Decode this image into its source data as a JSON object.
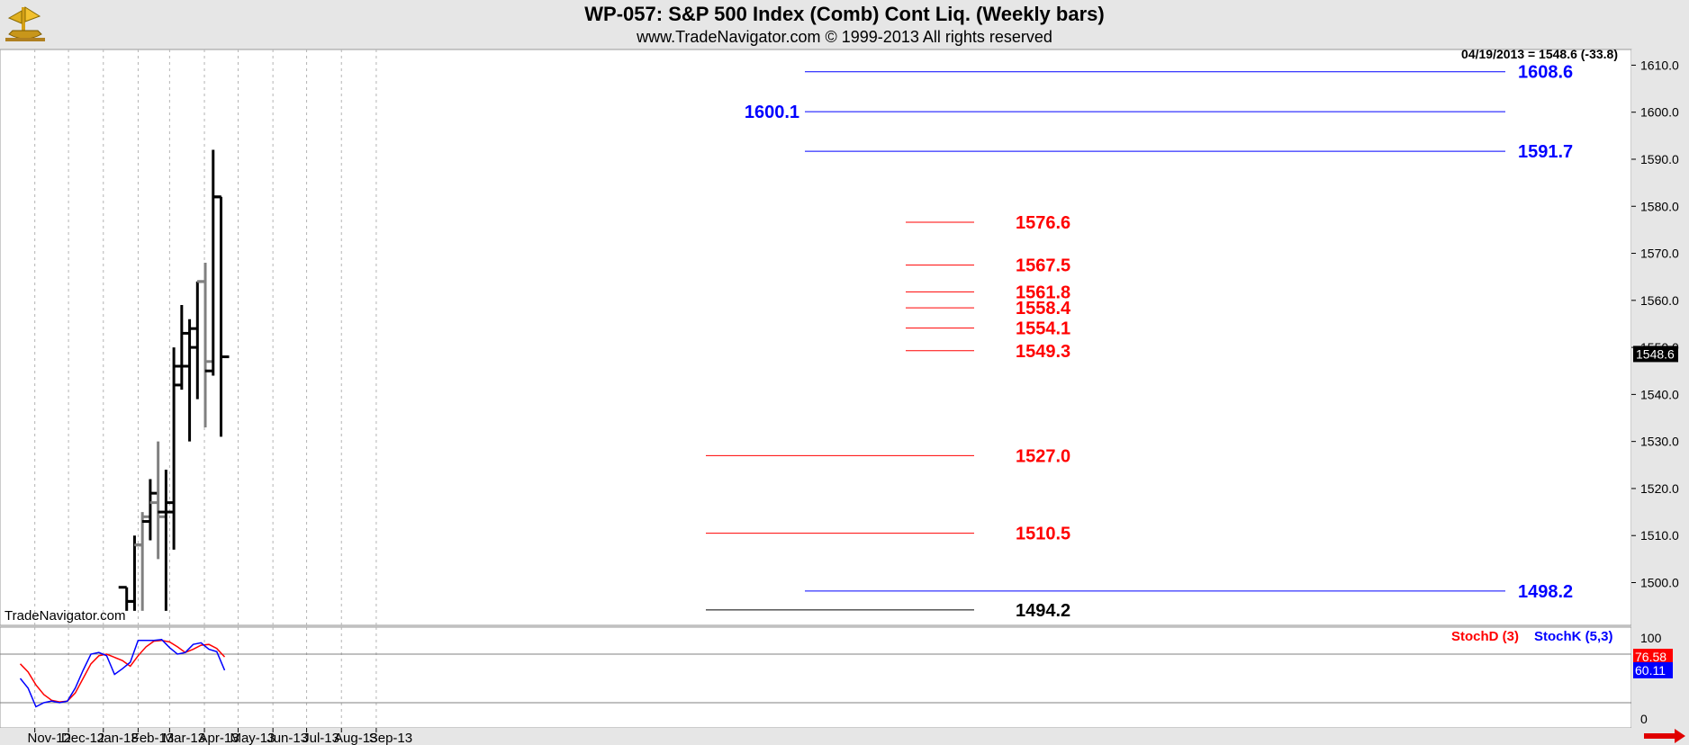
{
  "header": {
    "title": "WP-057:  S&P 500 Index (Comb) Cont Liq.  (Weekly bars)",
    "subtitle": "www.TradeNavigator.com © 1999-2013 All rights reserved"
  },
  "watermark": "TradeNavigator.com",
  "last_price_info": "04/19/2013 = 1548.6 (-33.8)",
  "colors": {
    "price_bar_up": "#000000",
    "price_bar_gray": "#808080",
    "blue_level": "#0000ff",
    "red_level": "#ff0000",
    "black_level": "#000000",
    "stoch_d": "#ff0000",
    "stoch_k": "#0000ff",
    "price_tag_bg": "#000000",
    "stoch_d_tag_bg": "#ff0000",
    "stoch_k_tag_bg": "#0000ff"
  },
  "chart_data": [
    {
      "type": "ohlc",
      "title": "WP-057:  S&P 500 Index (Comb) Cont Liq.  (Weekly bars)",
      "ylim": [
        1490,
        1615
      ],
      "y_ticks": [
        "1500.0",
        "1510.0",
        "1520.0",
        "1530.0",
        "1540.0",
        "1550.0",
        "1560.0",
        "1570.0",
        "1580.0",
        "1590.0",
        "1600.0",
        "1610.0"
      ],
      "x_labels": [
        "Nov-12",
        "Dec-12",
        "Jan-13",
        "Feb-13",
        "Mar-13",
        "Apr-13",
        "May-13",
        "Jun-13",
        "Jul-13",
        "Aug-13",
        "Sep-13"
      ],
      "last_price_tag": "1548.6",
      "bars": [
        {
          "week": "2013-01-25",
          "open": 1499,
          "high": 1499,
          "low": 1494,
          "close": 1496,
          "color": "black"
        },
        {
          "week": "2013-02-01",
          "open": 1496,
          "high": 1510,
          "low": 1494,
          "close": 1508,
          "color": "black"
        },
        {
          "week": "2013-02-08",
          "open": 1508,
          "high": 1515,
          "low": 1494,
          "close": 1514,
          "color": "gray"
        },
        {
          "week": "2013-02-15",
          "open": 1513,
          "high": 1522,
          "low": 1509,
          "close": 1519,
          "color": "black"
        },
        {
          "week": "2013-02-22",
          "open": 1517,
          "high": 1530,
          "low": 1505,
          "close": 1514,
          "color": "gray"
        },
        {
          "week": "2013-03-01",
          "open": 1515,
          "high": 1524,
          "low": 1494,
          "close": 1517,
          "color": "black"
        },
        {
          "week": "2013-03-08",
          "open": 1515,
          "high": 1550,
          "low": 1507,
          "close": 1546,
          "color": "black"
        },
        {
          "week": "2013-03-15",
          "open": 1542,
          "high": 1559,
          "low": 1541,
          "close": 1553,
          "color": "black"
        },
        {
          "week": "2013-03-22",
          "open": 1546,
          "high": 1556,
          "low": 1530,
          "close": 1554,
          "color": "black"
        },
        {
          "week": "2013-03-29",
          "open": 1550,
          "high": 1564,
          "low": 1539,
          "close": 1564,
          "color": "black"
        },
        {
          "week": "2013-04-05",
          "open": 1564,
          "high": 1568,
          "low": 1533,
          "close": 1547,
          "color": "gray"
        },
        {
          "week": "2013-04-12",
          "open": 1545,
          "high": 1592,
          "low": 1544,
          "close": 1582,
          "color": "black"
        },
        {
          "week": "2013-04-19",
          "open": 1582,
          "high": 1582,
          "low": 1531,
          "close": 1548,
          "color": "black"
        }
      ],
      "levels": [
        {
          "value": 1608.6,
          "label": "1608.6",
          "color": "blue",
          "label_side": "right",
          "span": "long"
        },
        {
          "value": 1600.1,
          "label": "1600.1",
          "color": "blue",
          "label_side": "left",
          "span": "long"
        },
        {
          "value": 1591.7,
          "label": "1591.7",
          "color": "blue",
          "label_side": "right",
          "span": "long"
        },
        {
          "value": 1576.6,
          "label": "1576.6",
          "color": "red",
          "label_side": "right",
          "span": "short"
        },
        {
          "value": 1567.5,
          "label": "1567.5",
          "color": "red",
          "label_side": "right",
          "span": "short"
        },
        {
          "value": 1561.8,
          "label": "1561.8",
          "color": "red",
          "label_side": "right",
          "span": "short"
        },
        {
          "value": 1558.4,
          "label": "1558.4",
          "color": "red",
          "label_side": "right",
          "span": "short"
        },
        {
          "value": 1554.1,
          "label": "1554.1",
          "color": "red",
          "label_side": "right",
          "span": "short"
        },
        {
          "value": 1549.3,
          "label": "1549.3",
          "color": "red",
          "label_side": "right",
          "span": "short"
        },
        {
          "value": 1527.0,
          "label": "1527.0",
          "color": "red",
          "label_side": "right",
          "span": "medium"
        },
        {
          "value": 1510.5,
          "label": "1510.5",
          "color": "red",
          "label_side": "right",
          "span": "medium"
        },
        {
          "value": 1498.2,
          "label": "1498.2",
          "color": "blue",
          "label_side": "right",
          "span": "long"
        },
        {
          "value": 1494.2,
          "label": "1494.2",
          "color": "black",
          "label_side": "right",
          "span": "medium"
        }
      ]
    },
    {
      "type": "line",
      "title": "",
      "ylim": [
        0,
        100
      ],
      "y_ticks": [
        "0",
        "100"
      ],
      "reference_levels": [
        80,
        20
      ],
      "legend": [
        "StochD (3)",
        "StochK (5,3)"
      ],
      "legend_placement": "top-right",
      "series": [
        {
          "name": "StochD (3)",
          "last_value_tag": "76.58",
          "points": [
            [
              "2012-10-19",
              68
            ],
            [
              "2012-10-26",
              58
            ],
            [
              "2012-11-02",
              42
            ],
            [
              "2012-11-09",
              30
            ],
            [
              "2012-11-16",
              23
            ],
            [
              "2012-11-23",
              21
            ],
            [
              "2012-11-30",
              22
            ],
            [
              "2012-12-07",
              32
            ],
            [
              "2012-12-14",
              50
            ],
            [
              "2012-12-21",
              68
            ],
            [
              "2012-12-28",
              78
            ],
            [
              "2013-01-04",
              80
            ],
            [
              "2013-01-11",
              76
            ],
            [
              "2013-01-18",
              72
            ],
            [
              "2013-01-25",
              65
            ],
            [
              "2013-02-01",
              78
            ],
            [
              "2013-02-08",
              89
            ],
            [
              "2013-02-15",
              96
            ],
            [
              "2013-02-22",
              97
            ],
            [
              "2013-03-01",
              95
            ],
            [
              "2013-03-08",
              89
            ],
            [
              "2013-03-15",
              82
            ],
            [
              "2013-03-22",
              86
            ],
            [
              "2013-03-29",
              91
            ],
            [
              "2013-04-05",
              92
            ],
            [
              "2013-04-12",
              87
            ],
            [
              "2013-04-19",
              76.58
            ]
          ]
        },
        {
          "name": "StochK (5,3)",
          "last_value_tag": "60.11",
          "points": [
            [
              "2012-10-19",
              50
            ],
            [
              "2012-10-26",
              38
            ],
            [
              "2012-11-02",
              15
            ],
            [
              "2012-11-09",
              20
            ],
            [
              "2012-11-16",
              22
            ],
            [
              "2012-11-23",
              20
            ],
            [
              "2012-11-30",
              22
            ],
            [
              "2012-12-07",
              38
            ],
            [
              "2012-12-14",
              60
            ],
            [
              "2012-12-21",
              80
            ],
            [
              "2012-12-28",
              82
            ],
            [
              "2013-01-04",
              78
            ],
            [
              "2013-01-11",
              55
            ],
            [
              "2013-01-18",
              62
            ],
            [
              "2013-01-25",
              70
            ],
            [
              "2013-02-01",
              97
            ],
            [
              "2013-02-08",
              97
            ],
            [
              "2013-02-15",
              97
            ],
            [
              "2013-02-22",
              98
            ],
            [
              "2013-03-01",
              88
            ],
            [
              "2013-03-08",
              80
            ],
            [
              "2013-03-15",
              82
            ],
            [
              "2013-03-22",
              92
            ],
            [
              "2013-03-29",
              94
            ],
            [
              "2013-04-05",
              86
            ],
            [
              "2013-04-12",
              83
            ],
            [
              "2013-04-19",
              60.11
            ]
          ]
        }
      ]
    }
  ]
}
